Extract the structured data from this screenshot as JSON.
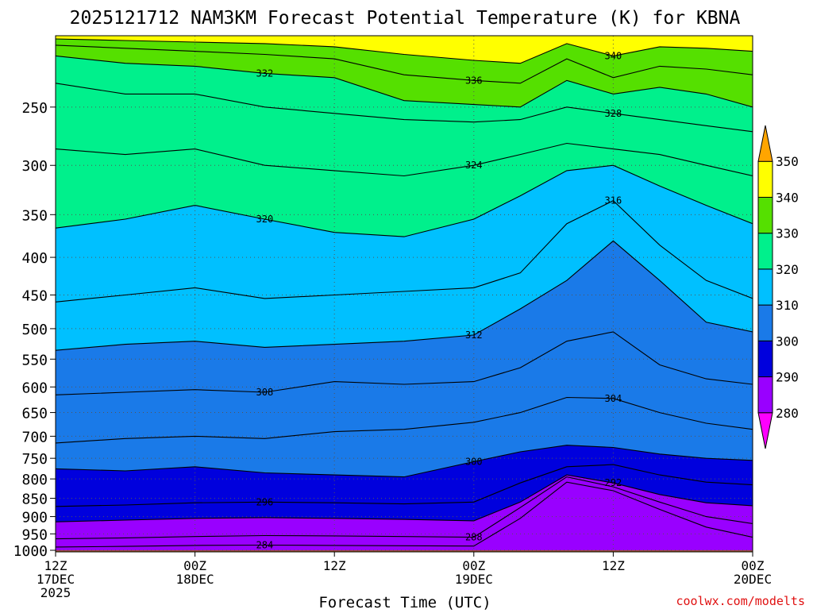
{
  "chart_data": {
    "type": "heatmap",
    "title": "2025121712 NAM3KM Forecast Potential Temperature (K) for KBNA",
    "xlabel": "Forecast Time (UTC)",
    "ylabel": "",
    "y_axis": {
      "scale": "log-pressure",
      "direction": "decreasing-upward",
      "range_hpa": [
        1000,
        200
      ],
      "ticks": [
        "250",
        "300",
        "350",
        "400",
        "450",
        "500",
        "550",
        "600",
        "650",
        "700",
        "750",
        "800",
        "850",
        "900",
        "950",
        "1000"
      ]
    },
    "x_axis": {
      "range_hours": [
        0,
        60
      ],
      "ticks": [
        {
          "hour": 0,
          "line1": "12Z",
          "line2": "17DEC",
          "line3": "2025"
        },
        {
          "hour": 12,
          "line1": "00Z",
          "line2": "18DEC",
          "line3": ""
        },
        {
          "hour": 24,
          "line1": "12Z",
          "line2": "",
          "line3": ""
        },
        {
          "hour": 36,
          "line1": "00Z",
          "line2": "19DEC",
          "line3": ""
        },
        {
          "hour": 48,
          "line1": "12Z",
          "line2": "",
          "line3": ""
        },
        {
          "hour": 60,
          "line1": "00Z",
          "line2": "20DEC",
          "line3": ""
        }
      ]
    },
    "colorbar": {
      "labels": [
        "350",
        "340",
        "330",
        "320",
        "310",
        "300",
        "290",
        "280"
      ],
      "bands": [
        {
          "min": 270,
          "max": 280,
          "color": "#ff00ff"
        },
        {
          "min": 280,
          "max": 290,
          "color": "#9900ff"
        },
        {
          "min": 290,
          "max": 300,
          "color": "#0000dd"
        },
        {
          "min": 300,
          "max": 310,
          "color": "#1a7ae8"
        },
        {
          "min": 310,
          "max": 320,
          "color": "#00c0ff"
        },
        {
          "min": 320,
          "max": 330,
          "color": "#00f08c"
        },
        {
          "min": 330,
          "max": 340,
          "color": "#55e000"
        },
        {
          "min": 340,
          "max": 350,
          "color": "#ffff00"
        },
        {
          "min": 350,
          "max": 360,
          "color": "#ffa500"
        }
      ]
    },
    "isentropes": [
      {
        "theta": 284,
        "label": "284",
        "points": [
          [
            0,
            990
          ],
          [
            6,
            988
          ],
          [
            12,
            985
          ],
          [
            18,
            984
          ],
          [
            24,
            985
          ],
          [
            30,
            986
          ],
          [
            36,
            987
          ],
          [
            40,
            905
          ],
          [
            44,
            808
          ],
          [
            48,
            830
          ],
          [
            52,
            880
          ],
          [
            56,
            930
          ],
          [
            60,
            960
          ]
        ]
      },
      {
        "theta": 288,
        "label": "288",
        "points": [
          [
            0,
            965
          ],
          [
            6,
            962
          ],
          [
            12,
            958
          ],
          [
            18,
            955
          ],
          [
            24,
            956
          ],
          [
            30,
            958
          ],
          [
            36,
            960
          ],
          [
            40,
            875
          ],
          [
            44,
            795
          ],
          [
            48,
            820
          ],
          [
            52,
            860
          ],
          [
            56,
            900
          ],
          [
            60,
            920
          ]
        ]
      },
      {
        "theta": 292,
        "label": "292",
        "points": [
          [
            0,
            915
          ],
          [
            6,
            910
          ],
          [
            12,
            905
          ],
          [
            18,
            903
          ],
          [
            24,
            905
          ],
          [
            30,
            908
          ],
          [
            36,
            912
          ],
          [
            40,
            860
          ],
          [
            44,
            790
          ],
          [
            48,
            810
          ],
          [
            52,
            840
          ],
          [
            56,
            862
          ],
          [
            60,
            870
          ]
        ]
      },
      {
        "theta": 296,
        "label": "296",
        "points": [
          [
            0,
            872
          ],
          [
            6,
            868
          ],
          [
            12,
            862
          ],
          [
            18,
            860
          ],
          [
            24,
            862
          ],
          [
            30,
            865
          ],
          [
            36,
            860
          ],
          [
            40,
            810
          ],
          [
            44,
            770
          ],
          [
            48,
            765
          ],
          [
            52,
            790
          ],
          [
            56,
            808
          ],
          [
            60,
            815
          ]
        ]
      },
      {
        "theta": 300,
        "label": "300",
        "points": [
          [
            0,
            775
          ],
          [
            6,
            780
          ],
          [
            12,
            770
          ],
          [
            18,
            785
          ],
          [
            24,
            790
          ],
          [
            30,
            795
          ],
          [
            36,
            758
          ],
          [
            40,
            735
          ],
          [
            44,
            720
          ],
          [
            48,
            725
          ],
          [
            52,
            740
          ],
          [
            56,
            750
          ],
          [
            60,
            755
          ]
        ]
      },
      {
        "theta": 304,
        "label": "304",
        "points": [
          [
            0,
            715
          ],
          [
            6,
            705
          ],
          [
            12,
            700
          ],
          [
            18,
            705
          ],
          [
            24,
            690
          ],
          [
            30,
            685
          ],
          [
            36,
            670
          ],
          [
            40,
            650
          ],
          [
            44,
            620
          ],
          [
            48,
            622
          ],
          [
            52,
            650
          ],
          [
            56,
            672
          ],
          [
            60,
            685
          ]
        ]
      },
      {
        "theta": 308,
        "label": "308",
        "points": [
          [
            0,
            615
          ],
          [
            6,
            610
          ],
          [
            12,
            605
          ],
          [
            18,
            610
          ],
          [
            24,
            590
          ],
          [
            30,
            595
          ],
          [
            36,
            590
          ],
          [
            40,
            565
          ],
          [
            44,
            520
          ],
          [
            48,
            505
          ],
          [
            52,
            560
          ],
          [
            56,
            585
          ],
          [
            60,
            595
          ]
        ]
      },
      {
        "theta": 312,
        "label": "312",
        "points": [
          [
            0,
            535
          ],
          [
            6,
            525
          ],
          [
            12,
            520
          ],
          [
            18,
            530
          ],
          [
            24,
            525
          ],
          [
            30,
            520
          ],
          [
            36,
            510
          ],
          [
            40,
            470
          ],
          [
            44,
            430
          ],
          [
            48,
            380
          ],
          [
            52,
            430
          ],
          [
            56,
            490
          ],
          [
            60,
            505
          ]
        ]
      },
      {
        "theta": 316,
        "label": "316",
        "points": [
          [
            0,
            460
          ],
          [
            6,
            450
          ],
          [
            12,
            440
          ],
          [
            18,
            455
          ],
          [
            24,
            450
          ],
          [
            30,
            445
          ],
          [
            36,
            440
          ],
          [
            40,
            420
          ],
          [
            44,
            360
          ],
          [
            48,
            335
          ],
          [
            52,
            385
          ],
          [
            56,
            430
          ],
          [
            60,
            455
          ]
        ]
      },
      {
        "theta": 320,
        "label": "320",
        "points": [
          [
            0,
            365
          ],
          [
            6,
            355
          ],
          [
            12,
            340
          ],
          [
            18,
            355
          ],
          [
            24,
            370
          ],
          [
            30,
            375
          ],
          [
            36,
            355
          ],
          [
            40,
            330
          ],
          [
            44,
            305
          ],
          [
            48,
            300
          ],
          [
            52,
            320
          ],
          [
            56,
            340
          ],
          [
            60,
            360
          ]
        ]
      },
      {
        "theta": 324,
        "label": "324",
        "points": [
          [
            0,
            285
          ],
          [
            6,
            290
          ],
          [
            12,
            285
          ],
          [
            18,
            300
          ],
          [
            24,
            305
          ],
          [
            30,
            310
          ],
          [
            36,
            300
          ],
          [
            40,
            290
          ],
          [
            44,
            280
          ],
          [
            48,
            285
          ],
          [
            52,
            290
          ],
          [
            56,
            300
          ],
          [
            60,
            310
          ]
        ]
      },
      {
        "theta": 328,
        "label": "328",
        "points": [
          [
            0,
            232
          ],
          [
            6,
            240
          ],
          [
            12,
            240
          ],
          [
            18,
            250
          ],
          [
            24,
            255
          ],
          [
            30,
            260
          ],
          [
            36,
            262
          ],
          [
            40,
            260
          ],
          [
            44,
            250
          ],
          [
            48,
            255
          ],
          [
            52,
            260
          ],
          [
            56,
            265
          ],
          [
            60,
            270
          ]
        ]
      },
      {
        "theta": 332,
        "label": "332",
        "points": [
          [
            0,
            213
          ],
          [
            6,
            218
          ],
          [
            12,
            220
          ],
          [
            18,
            225
          ],
          [
            24,
            228
          ],
          [
            30,
            245
          ],
          [
            36,
            248
          ],
          [
            40,
            250
          ],
          [
            44,
            230
          ],
          [
            48,
            240
          ],
          [
            52,
            235
          ],
          [
            56,
            240
          ],
          [
            60,
            250
          ]
        ]
      },
      {
        "theta": 336,
        "label": "336",
        "points": [
          [
            0,
            206
          ],
          [
            6,
            208
          ],
          [
            12,
            210
          ],
          [
            18,
            212
          ],
          [
            24,
            215
          ],
          [
            30,
            226
          ],
          [
            36,
            230
          ],
          [
            40,
            232
          ],
          [
            44,
            215
          ],
          [
            48,
            228
          ],
          [
            52,
            220
          ],
          [
            56,
            222
          ],
          [
            60,
            226
          ]
        ]
      },
      {
        "theta": 340,
        "label": "340",
        "points": [
          [
            0,
            202
          ],
          [
            6,
            203
          ],
          [
            12,
            204
          ],
          [
            18,
            205
          ],
          [
            24,
            207
          ],
          [
            30,
            212
          ],
          [
            36,
            216
          ],
          [
            40,
            218
          ],
          [
            44,
            205
          ],
          [
            48,
            213
          ],
          [
            52,
            207
          ],
          [
            56,
            208
          ],
          [
            60,
            210
          ]
        ]
      }
    ],
    "ground_pressure_hpa": 1000,
    "ground_color": "#a0522d"
  },
  "watermark": "coolwx.com/modelts"
}
